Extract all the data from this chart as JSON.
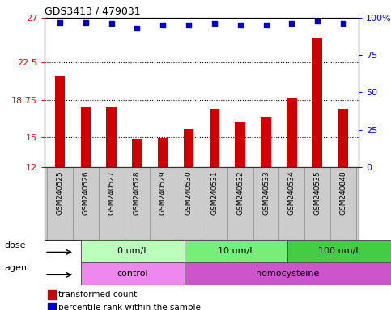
{
  "title": "GDS3413 / 479031",
  "samples": [
    "GSM240525",
    "GSM240526",
    "GSM240527",
    "GSM240528",
    "GSM240529",
    "GSM240530",
    "GSM240531",
    "GSM240532",
    "GSM240533",
    "GSM240534",
    "GSM240535",
    "GSM240848"
  ],
  "transformed_count": [
    21.2,
    18.0,
    18.0,
    14.8,
    14.9,
    15.8,
    17.8,
    16.5,
    17.0,
    19.0,
    25.0,
    17.8
  ],
  "percentile_rank": [
    97,
    97,
    96,
    93,
    95,
    95,
    96,
    95,
    95,
    96,
    98,
    96
  ],
  "bar_color": "#cc0000",
  "dot_color": "#0000cc",
  "ylim_left": [
    12,
    27
  ],
  "ylim_right": [
    0,
    100
  ],
  "yticks_left": [
    12,
    15,
    18.75,
    22.5,
    27
  ],
  "ytick_labels_left": [
    "12",
    "15",
    "18.75",
    "22.5",
    "27"
  ],
  "yticks_right": [
    0,
    25,
    50,
    75,
    100
  ],
  "ytick_labels_right": [
    "0",
    "25",
    "50",
    "75",
    "100%"
  ],
  "grid_values": [
    15,
    18.75,
    22.5
  ],
  "dose_groups": [
    {
      "label": "0 um/L",
      "start": 0,
      "end": 4,
      "color": "#bbffbb"
    },
    {
      "label": "10 um/L",
      "start": 4,
      "end": 8,
      "color": "#77ee77"
    },
    {
      "label": "100 um/L",
      "start": 8,
      "end": 12,
      "color": "#44cc44"
    }
  ],
  "agent_groups": [
    {
      "label": "control",
      "start": 0,
      "end": 4,
      "color": "#ee88ee"
    },
    {
      "label": "homocysteine",
      "start": 4,
      "end": 12,
      "color": "#cc55cc"
    }
  ],
  "dose_label": "dose",
  "agent_label": "agent",
  "legend_bar_label": "transformed count",
  "legend_dot_label": "percentile rank within the sample",
  "background_color": "#ffffff",
  "plot_bg_color": "#ffffff",
  "sample_bg_color": "#cccccc",
  "sample_border_color": "#888888",
  "bar_width": 0.4
}
